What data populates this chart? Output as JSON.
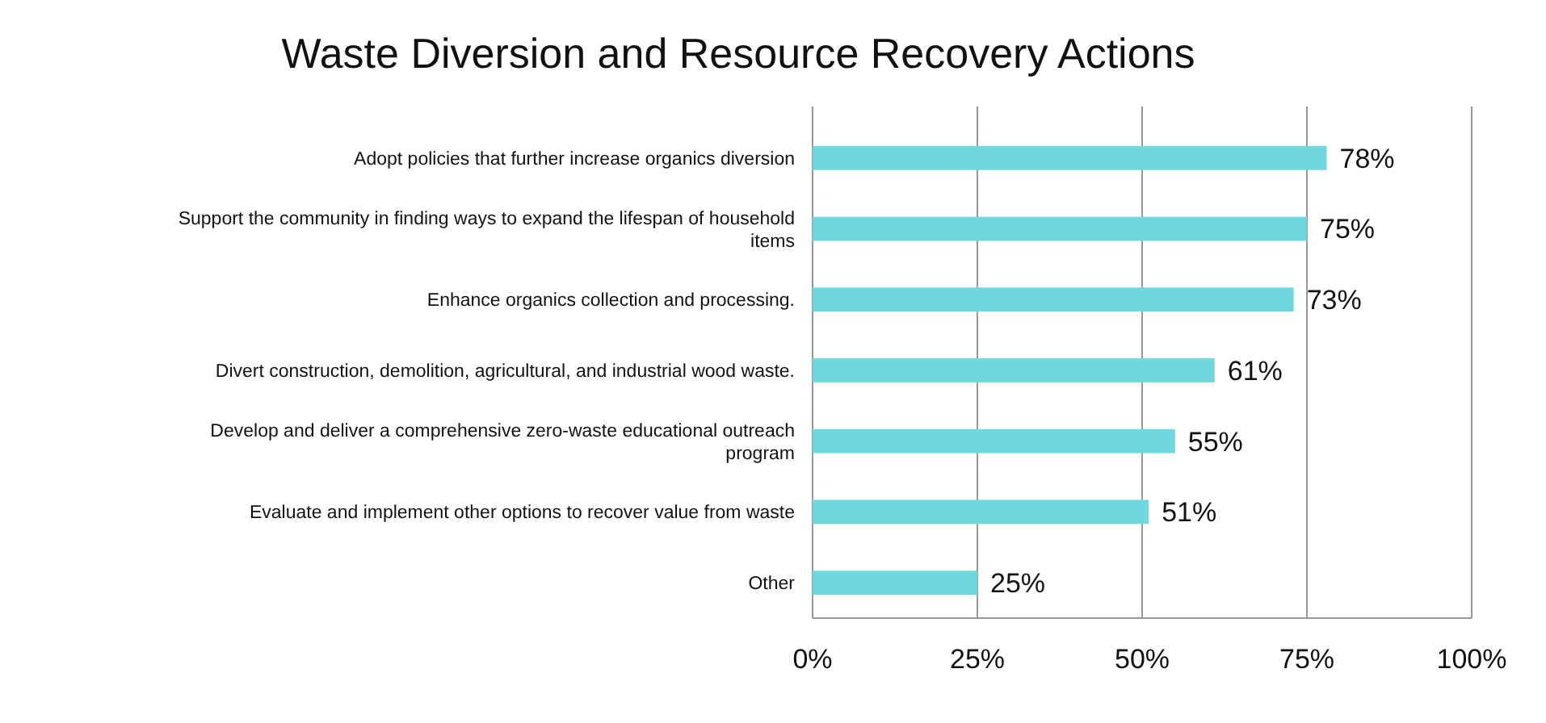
{
  "chart_data": {
    "type": "bar",
    "orientation": "horizontal",
    "title": "Waste Diversion and Resource Recovery Actions",
    "categories": [
      "Adopt policies that further increase organics diversion",
      "Support the community in finding ways to expand the lifespan of household items",
      "Enhance organics collection and processing.",
      "Divert construction, demolition, agricultural, and industrial wood waste.",
      "Develop and deliver a comprehensive zero-waste educational outreach program",
      "Evaluate and implement other options to recover value from waste",
      "Other"
    ],
    "values": [
      78,
      75,
      73,
      61,
      55,
      51,
      25
    ],
    "value_labels": [
      "78%",
      "75%",
      "73%",
      "61%",
      "55%",
      "51%",
      "25%"
    ],
    "color": "#6fd8de",
    "xlim": [
      0,
      100
    ],
    "xticks": [
      {
        "value": 0,
        "label": "0%"
      },
      {
        "value": 25,
        "label": "25%"
      },
      {
        "value": 50,
        "label": "50%"
      },
      {
        "value": 75,
        "label": "75%"
      },
      {
        "value": 100,
        "label": "100%"
      }
    ],
    "grid": "x"
  }
}
